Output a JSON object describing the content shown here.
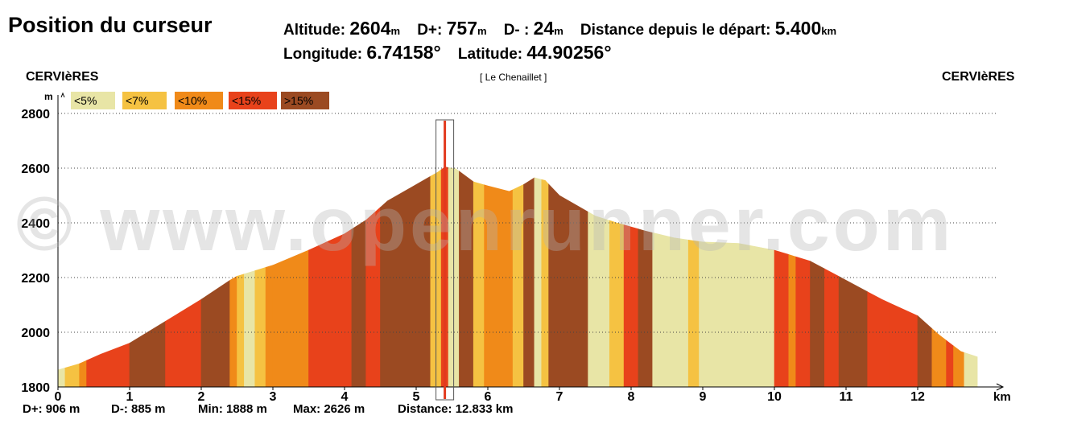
{
  "header": {
    "title": "Position du curseur",
    "altitude_label": "Altitude:",
    "altitude_value": "2604",
    "altitude_unit": "m",
    "dplus_label": "D+:",
    "dplus_value": "757",
    "dplus_unit": "m",
    "dminus_label": "D- :",
    "dminus_value": "24",
    "dminus_unit": "m",
    "distance_label": "Distance depuis le départ:",
    "distance_value": "5.400",
    "distance_unit": "km",
    "longitude_label": "Longitude:",
    "longitude_value": "6.74158°",
    "latitude_label": "Latitude:",
    "latitude_value": "44.90256°"
  },
  "places": {
    "start": "CERVIèRES",
    "pass": "[ Le Chenaillet ]",
    "end": "CERVIèRES"
  },
  "footer": {
    "dplus": "D+: 906 m",
    "dminus": "D-: 885 m",
    "min": "Min: 1888 m",
    "max": "Max: 2626 m",
    "distance": "Distance: 12.833 km"
  },
  "watermark": "© www.openrunner.com",
  "colors": {
    "lt5": "#E8E5A6",
    "lt7": "#F5C242",
    "lt10": "#F08A19",
    "lt15": "#E8421B",
    "gt15": "#9B4A22",
    "cursor": "#E23A1E"
  },
  "chart_data": {
    "type": "area",
    "xlabel": "km",
    "ylabel": "m",
    "xlim": [
      0,
      13
    ],
    "ylim": [
      1800,
      2800
    ],
    "x_ticks": [
      0,
      1,
      2,
      3,
      4,
      5,
      6,
      7,
      8,
      9,
      10,
      11,
      12
    ],
    "y_ticks": [
      1800,
      2000,
      2200,
      2400,
      2600,
      2800
    ],
    "grid": "horizontal dotted",
    "cursor_km": 5.4,
    "legend": [
      {
        "label": "<5%",
        "cls": "lt5"
      },
      {
        "label": "<7%",
        "cls": "lt7"
      },
      {
        "label": "<10%",
        "cls": "lt10"
      },
      {
        "label": "<15%",
        "cls": "lt15"
      },
      {
        "label": ">15%",
        "cls": "gt15"
      }
    ],
    "profile": [
      [
        0.0,
        1862
      ],
      [
        0.3,
        1885
      ],
      [
        0.6,
        1920
      ],
      [
        1.0,
        1960
      ],
      [
        1.5,
        2040
      ],
      [
        2.0,
        2120
      ],
      [
        2.4,
        2190
      ],
      [
        2.5,
        2205
      ],
      [
        3.0,
        2245
      ],
      [
        3.5,
        2300
      ],
      [
        4.0,
        2360
      ],
      [
        4.3,
        2410
      ],
      [
        4.6,
        2480
      ],
      [
        5.0,
        2540
      ],
      [
        5.3,
        2585
      ],
      [
        5.4,
        2604
      ],
      [
        5.55,
        2598
      ],
      [
        5.8,
        2550
      ],
      [
        6.0,
        2535
      ],
      [
        6.3,
        2515
      ],
      [
        6.5,
        2540
      ],
      [
        6.65,
        2565
      ],
      [
        6.8,
        2555
      ],
      [
        7.0,
        2500
      ],
      [
        7.5,
        2425
      ],
      [
        7.8,
        2400
      ],
      [
        8.2,
        2370
      ],
      [
        8.6,
        2345
      ],
      [
        9.0,
        2330
      ],
      [
        9.5,
        2325
      ],
      [
        10.0,
        2300
      ],
      [
        10.5,
        2260
      ],
      [
        11.0,
        2190
      ],
      [
        11.5,
        2120
      ],
      [
        12.0,
        2060
      ],
      [
        12.3,
        1990
      ],
      [
        12.6,
        1930
      ],
      [
        12.833,
        1910
      ]
    ],
    "segments": [
      [
        0.0,
        0.1,
        "lt5"
      ],
      [
        0.1,
        0.3,
        "lt7"
      ],
      [
        0.3,
        0.4,
        "lt10"
      ],
      [
        0.4,
        1.0,
        "lt15"
      ],
      [
        1.0,
        1.5,
        "gt15"
      ],
      [
        1.5,
        2.0,
        "lt15"
      ],
      [
        2.0,
        2.4,
        "gt15"
      ],
      [
        2.4,
        2.5,
        "lt10"
      ],
      [
        2.5,
        2.6,
        "lt7"
      ],
      [
        2.6,
        2.75,
        "lt5"
      ],
      [
        2.75,
        2.9,
        "lt7"
      ],
      [
        2.9,
        3.0,
        "lt10"
      ],
      [
        3.0,
        3.5,
        "lt10"
      ],
      [
        3.5,
        4.1,
        "lt15"
      ],
      [
        4.1,
        4.3,
        "gt15"
      ],
      [
        4.3,
        4.5,
        "lt15"
      ],
      [
        4.5,
        5.2,
        "gt15"
      ],
      [
        5.2,
        5.35,
        "lt7"
      ],
      [
        5.35,
        5.45,
        "lt15"
      ],
      [
        5.45,
        5.6,
        "lt5"
      ],
      [
        5.6,
        5.8,
        "gt15"
      ],
      [
        5.8,
        5.95,
        "lt7"
      ],
      [
        5.95,
        6.35,
        "lt10"
      ],
      [
        6.35,
        6.5,
        "lt7"
      ],
      [
        6.5,
        6.65,
        "gt15"
      ],
      [
        6.65,
        6.75,
        "lt5"
      ],
      [
        6.75,
        6.85,
        "lt7"
      ],
      [
        6.85,
        7.4,
        "gt15"
      ],
      [
        7.4,
        7.7,
        "lt5"
      ],
      [
        7.7,
        7.9,
        "lt7"
      ],
      [
        7.9,
        8.1,
        "lt15"
      ],
      [
        8.1,
        8.3,
        "gt15"
      ],
      [
        8.3,
        8.8,
        "lt5"
      ],
      [
        8.8,
        8.95,
        "lt7"
      ],
      [
        8.95,
        10.0,
        "lt5"
      ],
      [
        10.0,
        10.2,
        "lt15"
      ],
      [
        10.2,
        10.3,
        "lt10"
      ],
      [
        10.3,
        10.5,
        "lt15"
      ],
      [
        10.5,
        10.7,
        "gt15"
      ],
      [
        10.7,
        10.9,
        "lt15"
      ],
      [
        10.9,
        11.3,
        "gt15"
      ],
      [
        11.3,
        11.6,
        "lt15"
      ],
      [
        11.6,
        12.0,
        "lt15"
      ],
      [
        12.0,
        12.2,
        "gt15"
      ],
      [
        12.2,
        12.4,
        "lt10"
      ],
      [
        12.4,
        12.5,
        "lt15"
      ],
      [
        12.5,
        12.65,
        "lt10"
      ],
      [
        12.65,
        12.833,
        "lt5"
      ]
    ]
  }
}
